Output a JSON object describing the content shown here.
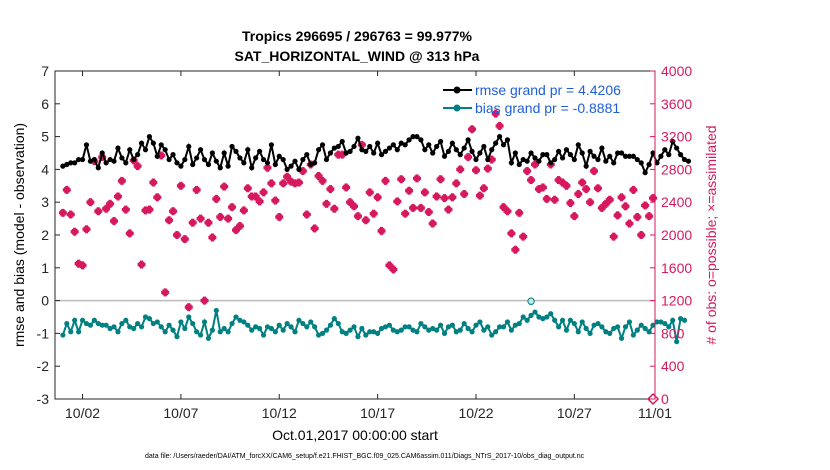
{
  "chart_data": {
    "type": "line",
    "title_line1": "Tropics 296695 / 296763 = 99.977%",
    "title_line2": "SAT_HORIZONTAL_WIND @ 313 hPa",
    "xlabel": "Oct.01,2017 00:00:00 start",
    "ylabel_left": "rmse and bias (model - observation)",
    "ylabel_right": "# of obs: o=possible; ×=assimilated",
    "footer": "data file: /Users/raeder/DAI/ATM_forcXX/CAM6_setup/f.e21.FHIST_BGC.f09_025.CAM6assim.011/Diags_NTrS_2017-10/obs_diag_output.nc",
    "xlim": [
      0.6,
      31.1
    ],
    "ylim_left": [
      -3,
      7
    ],
    "ylim_right": [
      0,
      4000
    ],
    "x_ticks": [
      2,
      7,
      12,
      17,
      22,
      27,
      32
    ],
    "x_tick_labels": [
      "10/02",
      "10/07",
      "10/12",
      "10/17",
      "10/22",
      "10/27",
      "11/01"
    ],
    "y_ticks_left": [
      "-3",
      "-2",
      "-1",
      "0",
      "1",
      "2",
      "3",
      "4",
      "5",
      "6",
      "7"
    ],
    "y_ticks_right": [
      "0",
      "400",
      "800",
      "1200",
      "1600",
      "2000",
      "2400",
      "2800",
      "3200",
      "3600",
      "4000"
    ],
    "colors": {
      "rmse": "#000000",
      "bias": "#008080",
      "obs": "#d6195f",
      "zero_line": "#bbbbbb",
      "legend_text": "#1f5fd6"
    },
    "series": [
      {
        "name": "rmse grand pr = 4.4206",
        "axis": "left",
        "values": [
          4.1,
          4.15,
          4.2,
          4.2,
          4.3,
          4.3,
          4.75,
          4.25,
          4.3,
          4.05,
          4.5,
          4.2,
          4.3,
          4.25,
          4.65,
          4.35,
          4.2,
          4.6,
          4.3,
          4.45,
          4.8,
          4.6,
          5.0,
          4.8,
          4.4,
          4.75,
          4.6,
          4.3,
          4.45,
          4.2,
          4.1,
          4.3,
          4.7,
          4.15,
          4.35,
          4.6,
          4.3,
          4.15,
          4.5,
          4.25,
          4.05,
          4.5,
          4.1,
          4.7,
          4.55,
          4.35,
          4.2,
          4.6,
          4.05,
          4.35,
          4.55,
          4.3,
          4.2,
          4.75,
          4.15,
          4.4,
          4.3,
          4.0,
          4.1,
          4.25,
          4.0,
          4.3,
          4.45,
          4.15,
          4.2,
          4.6,
          4.75,
          4.3,
          4.5,
          4.65,
          4.7,
          4.85,
          4.5,
          4.55,
          4.7,
          4.95,
          4.6,
          4.55,
          4.7,
          4.5,
          4.8,
          4.45,
          4.55,
          4.65,
          4.75,
          4.6,
          4.8,
          4.75,
          4.9,
          5.0,
          5.0,
          4.9,
          4.6,
          4.75,
          4.5,
          4.7,
          4.85,
          4.4,
          4.55,
          4.8,
          4.6,
          4.45,
          4.65,
          4.9,
          4.55,
          4.3,
          4.5,
          4.7,
          4.3,
          4.6,
          4.8,
          5.0,
          4.75,
          4.9,
          4.2,
          4.5,
          4.15,
          4.3,
          4.25,
          4.5,
          4.35,
          4.25,
          4.45,
          4.45,
          4.2,
          4.3,
          4.55,
          4.35,
          4.6,
          4.45,
          4.3,
          4.75,
          4.5,
          4.1,
          4.55,
          4.4,
          4.3,
          4.65,
          4.25,
          4.4,
          4.2,
          4.5,
          4.5,
          4.4,
          4.4,
          4.4,
          4.3,
          4.2,
          3.9,
          4.15,
          4.5,
          4.2,
          4.4,
          4.6,
          4.45,
          4.85,
          4.65,
          4.45,
          4.3,
          4.25
        ],
        "x_start": 1,
        "x_step": 0.2
      },
      {
        "name": "bias grand pr = -0.8881",
        "axis": "left",
        "values": [
          -1.05,
          -0.7,
          -0.95,
          -0.6,
          -0.95,
          -0.6,
          -0.7,
          -0.75,
          -0.6,
          -0.7,
          -0.75,
          -0.75,
          -0.85,
          -0.8,
          -0.95,
          -0.7,
          -0.6,
          -0.8,
          -0.85,
          -0.7,
          -0.8,
          -0.5,
          -0.55,
          -0.7,
          -0.65,
          -0.8,
          -0.95,
          -0.75,
          -0.9,
          -1.1,
          -0.65,
          -0.85,
          -0.5,
          -0.7,
          -0.95,
          -1.05,
          -0.65,
          -1.15,
          -0.9,
          -0.3,
          -0.95,
          -0.85,
          -0.95,
          -0.7,
          -0.5,
          -0.6,
          -0.65,
          -0.75,
          -0.9,
          -0.8,
          -0.85,
          -1.05,
          -0.8,
          -0.85,
          -0.95,
          -0.75,
          -0.9,
          -0.7,
          -0.8,
          -0.95,
          -0.6,
          -0.7,
          -0.8,
          -0.65,
          -0.8,
          -1.05,
          -1.0,
          -0.9,
          -0.75,
          -0.55,
          -0.7,
          -0.95,
          -1.0,
          -0.9,
          -0.8,
          -1.1,
          -0.85,
          -1.05,
          -0.95,
          -0.95,
          -1.0,
          -0.85,
          -0.8,
          -0.75,
          -0.9,
          -0.95,
          -0.9,
          -0.8,
          -0.8,
          -0.9,
          -0.95,
          -0.7,
          -0.8,
          -0.9,
          -0.85,
          -0.9,
          -0.75,
          -1.0,
          -0.8,
          -0.75,
          -0.95,
          -0.9,
          -0.7,
          -0.85,
          -0.95,
          -0.75,
          -0.65,
          -0.9,
          -0.8,
          -1.05,
          -0.95,
          -0.8,
          -0.8,
          -0.65,
          -0.9,
          -0.75,
          -0.7,
          -0.5,
          -0.6,
          -0.45,
          -0.35,
          -0.5,
          -0.55,
          -0.5,
          -0.4,
          -0.6,
          -0.8,
          -0.6,
          -0.9,
          -0.6,
          -0.7,
          -0.95,
          -0.65,
          -0.85,
          -1.0,
          -0.75,
          -0.7,
          -0.8,
          -0.95,
          -1.0,
          -0.85,
          -0.8,
          -1.15,
          -0.8,
          -0.65,
          -1.05,
          -0.9,
          -0.75,
          -0.85,
          -0.95,
          -0.75,
          -0.65,
          -0.65,
          -0.7,
          -0.8,
          -0.6,
          -1.25,
          -0.55,
          -0.6
        ],
        "x_start": 1,
        "x_step": 0.2
      },
      {
        "name": "obs assimilated",
        "axis": "right",
        "points": [
          [
            1.0,
            2270
          ],
          [
            1.2,
            2550
          ],
          [
            1.4,
            2250
          ],
          [
            1.6,
            2040
          ],
          [
            1.8,
            1650
          ],
          [
            2.0,
            1630
          ],
          [
            2.2,
            2070
          ],
          [
            2.4,
            2400
          ],
          [
            2.6,
            2900
          ],
          [
            2.8,
            2290
          ],
          [
            3.0,
            2950
          ],
          [
            3.2,
            2320
          ],
          [
            3.4,
            2380
          ],
          [
            3.6,
            2170
          ],
          [
            3.8,
            2470
          ],
          [
            4.0,
            2660
          ],
          [
            4.2,
            2310
          ],
          [
            4.4,
            2020
          ],
          [
            4.6,
            2910
          ],
          [
            4.8,
            2840
          ],
          [
            5.0,
            1640
          ],
          [
            5.2,
            2300
          ],
          [
            5.4,
            2310
          ],
          [
            5.6,
            2640
          ],
          [
            5.8,
            2460
          ],
          [
            6.0,
            2970
          ],
          [
            6.2,
            1300
          ],
          [
            6.4,
            2180
          ],
          [
            6.6,
            2290
          ],
          [
            6.8,
            2000
          ],
          [
            7.0,
            2600
          ],
          [
            7.2,
            1950
          ],
          [
            7.4,
            1120
          ],
          [
            7.6,
            2150
          ],
          [
            7.8,
            2550
          ],
          [
            8.0,
            2200
          ],
          [
            8.2,
            1200
          ],
          [
            8.4,
            2150
          ],
          [
            8.6,
            1970
          ],
          [
            8.8,
            2440
          ],
          [
            9.0,
            2220
          ],
          [
            9.2,
            2590
          ],
          [
            9.4,
            2200
          ],
          [
            9.6,
            2340
          ],
          [
            9.8,
            2060
          ],
          [
            10.0,
            2110
          ],
          [
            10.2,
            2300
          ],
          [
            10.4,
            2570
          ],
          [
            10.6,
            2470
          ],
          [
            10.8,
            2470
          ],
          [
            11.0,
            2410
          ],
          [
            11.2,
            2520
          ],
          [
            11.4,
            2820
          ],
          [
            11.6,
            2630
          ],
          [
            11.8,
            2420
          ],
          [
            12.0,
            2220
          ],
          [
            12.2,
            2630
          ],
          [
            12.4,
            2710
          ],
          [
            12.6,
            2650
          ],
          [
            12.8,
            2630
          ],
          [
            13.0,
            2640
          ],
          [
            13.2,
            2780
          ],
          [
            13.4,
            2250
          ],
          [
            13.6,
            2860
          ],
          [
            13.8,
            2080
          ],
          [
            14.0,
            2720
          ],
          [
            14.2,
            2660
          ],
          [
            14.4,
            2380
          ],
          [
            14.6,
            2560
          ],
          [
            14.8,
            2320
          ],
          [
            15.0,
            2980
          ],
          [
            15.2,
            2980
          ],
          [
            15.4,
            2580
          ],
          [
            15.6,
            2400
          ],
          [
            15.8,
            2350
          ],
          [
            16.0,
            2230
          ],
          [
            16.2,
            3100
          ],
          [
            16.4,
            2180
          ],
          [
            16.6,
            2520
          ],
          [
            16.8,
            2260
          ],
          [
            17.0,
            2460
          ],
          [
            17.2,
            2050
          ],
          [
            17.4,
            2660
          ],
          [
            17.6,
            1630
          ],
          [
            17.8,
            1580
          ],
          [
            18.0,
            2410
          ],
          [
            18.2,
            2680
          ],
          [
            18.4,
            2260
          ],
          [
            18.6,
            2540
          ],
          [
            18.8,
            2330
          ],
          [
            19.0,
            2690
          ],
          [
            19.2,
            2330
          ],
          [
            19.4,
            2520
          ],
          [
            19.6,
            2280
          ],
          [
            19.8,
            2140
          ],
          [
            20.0,
            2470
          ],
          [
            20.2,
            2680
          ],
          [
            20.4,
            2450
          ],
          [
            20.6,
            2310
          ],
          [
            20.8,
            2460
          ],
          [
            21.0,
            2630
          ],
          [
            21.2,
            2800
          ],
          [
            21.4,
            2500
          ],
          [
            21.6,
            2950
          ],
          [
            21.8,
            3290
          ],
          [
            22.0,
            2790
          ],
          [
            22.2,
            2480
          ],
          [
            22.4,
            2570
          ],
          [
            22.6,
            2810
          ],
          [
            22.8,
            2920
          ],
          [
            23.0,
            3480
          ],
          [
            23.2,
            3330
          ],
          [
            23.4,
            2340
          ],
          [
            23.6,
            2290
          ],
          [
            23.8,
            2020
          ],
          [
            24.0,
            1820
          ],
          [
            24.2,
            2270
          ],
          [
            24.4,
            1980
          ],
          [
            24.6,
            2780
          ],
          [
            24.8,
            2670
          ],
          [
            25.0,
            2860
          ],
          [
            25.2,
            2560
          ],
          [
            25.4,
            2580
          ],
          [
            25.6,
            2440
          ],
          [
            25.8,
            2860
          ],
          [
            26.0,
            2430
          ],
          [
            26.2,
            2670
          ],
          [
            26.4,
            2640
          ],
          [
            26.6,
            2600
          ],
          [
            26.8,
            2390
          ],
          [
            27.0,
            2230
          ],
          [
            27.2,
            2500
          ],
          [
            27.4,
            2640
          ],
          [
            27.6,
            2560
          ],
          [
            27.8,
            2400
          ],
          [
            28.0,
            2780
          ],
          [
            28.2,
            2570
          ],
          [
            28.4,
            2330
          ],
          [
            28.6,
            2380
          ],
          [
            28.8,
            2430
          ],
          [
            29.0,
            1980
          ],
          [
            29.2,
            2240
          ],
          [
            29.4,
            2460
          ],
          [
            29.6,
            2350
          ],
          [
            29.8,
            2140
          ],
          [
            30.0,
            2550
          ],
          [
            30.2,
            2220
          ],
          [
            30.4,
            2000
          ],
          [
            30.6,
            2360
          ],
          [
            30.8,
            2230
          ],
          [
            31.0,
            2450
          ]
        ]
      },
      {
        "name": "obs possible (end)",
        "axis": "right",
        "points": [
          [
            31.0,
            0
          ]
        ]
      }
    ]
  }
}
